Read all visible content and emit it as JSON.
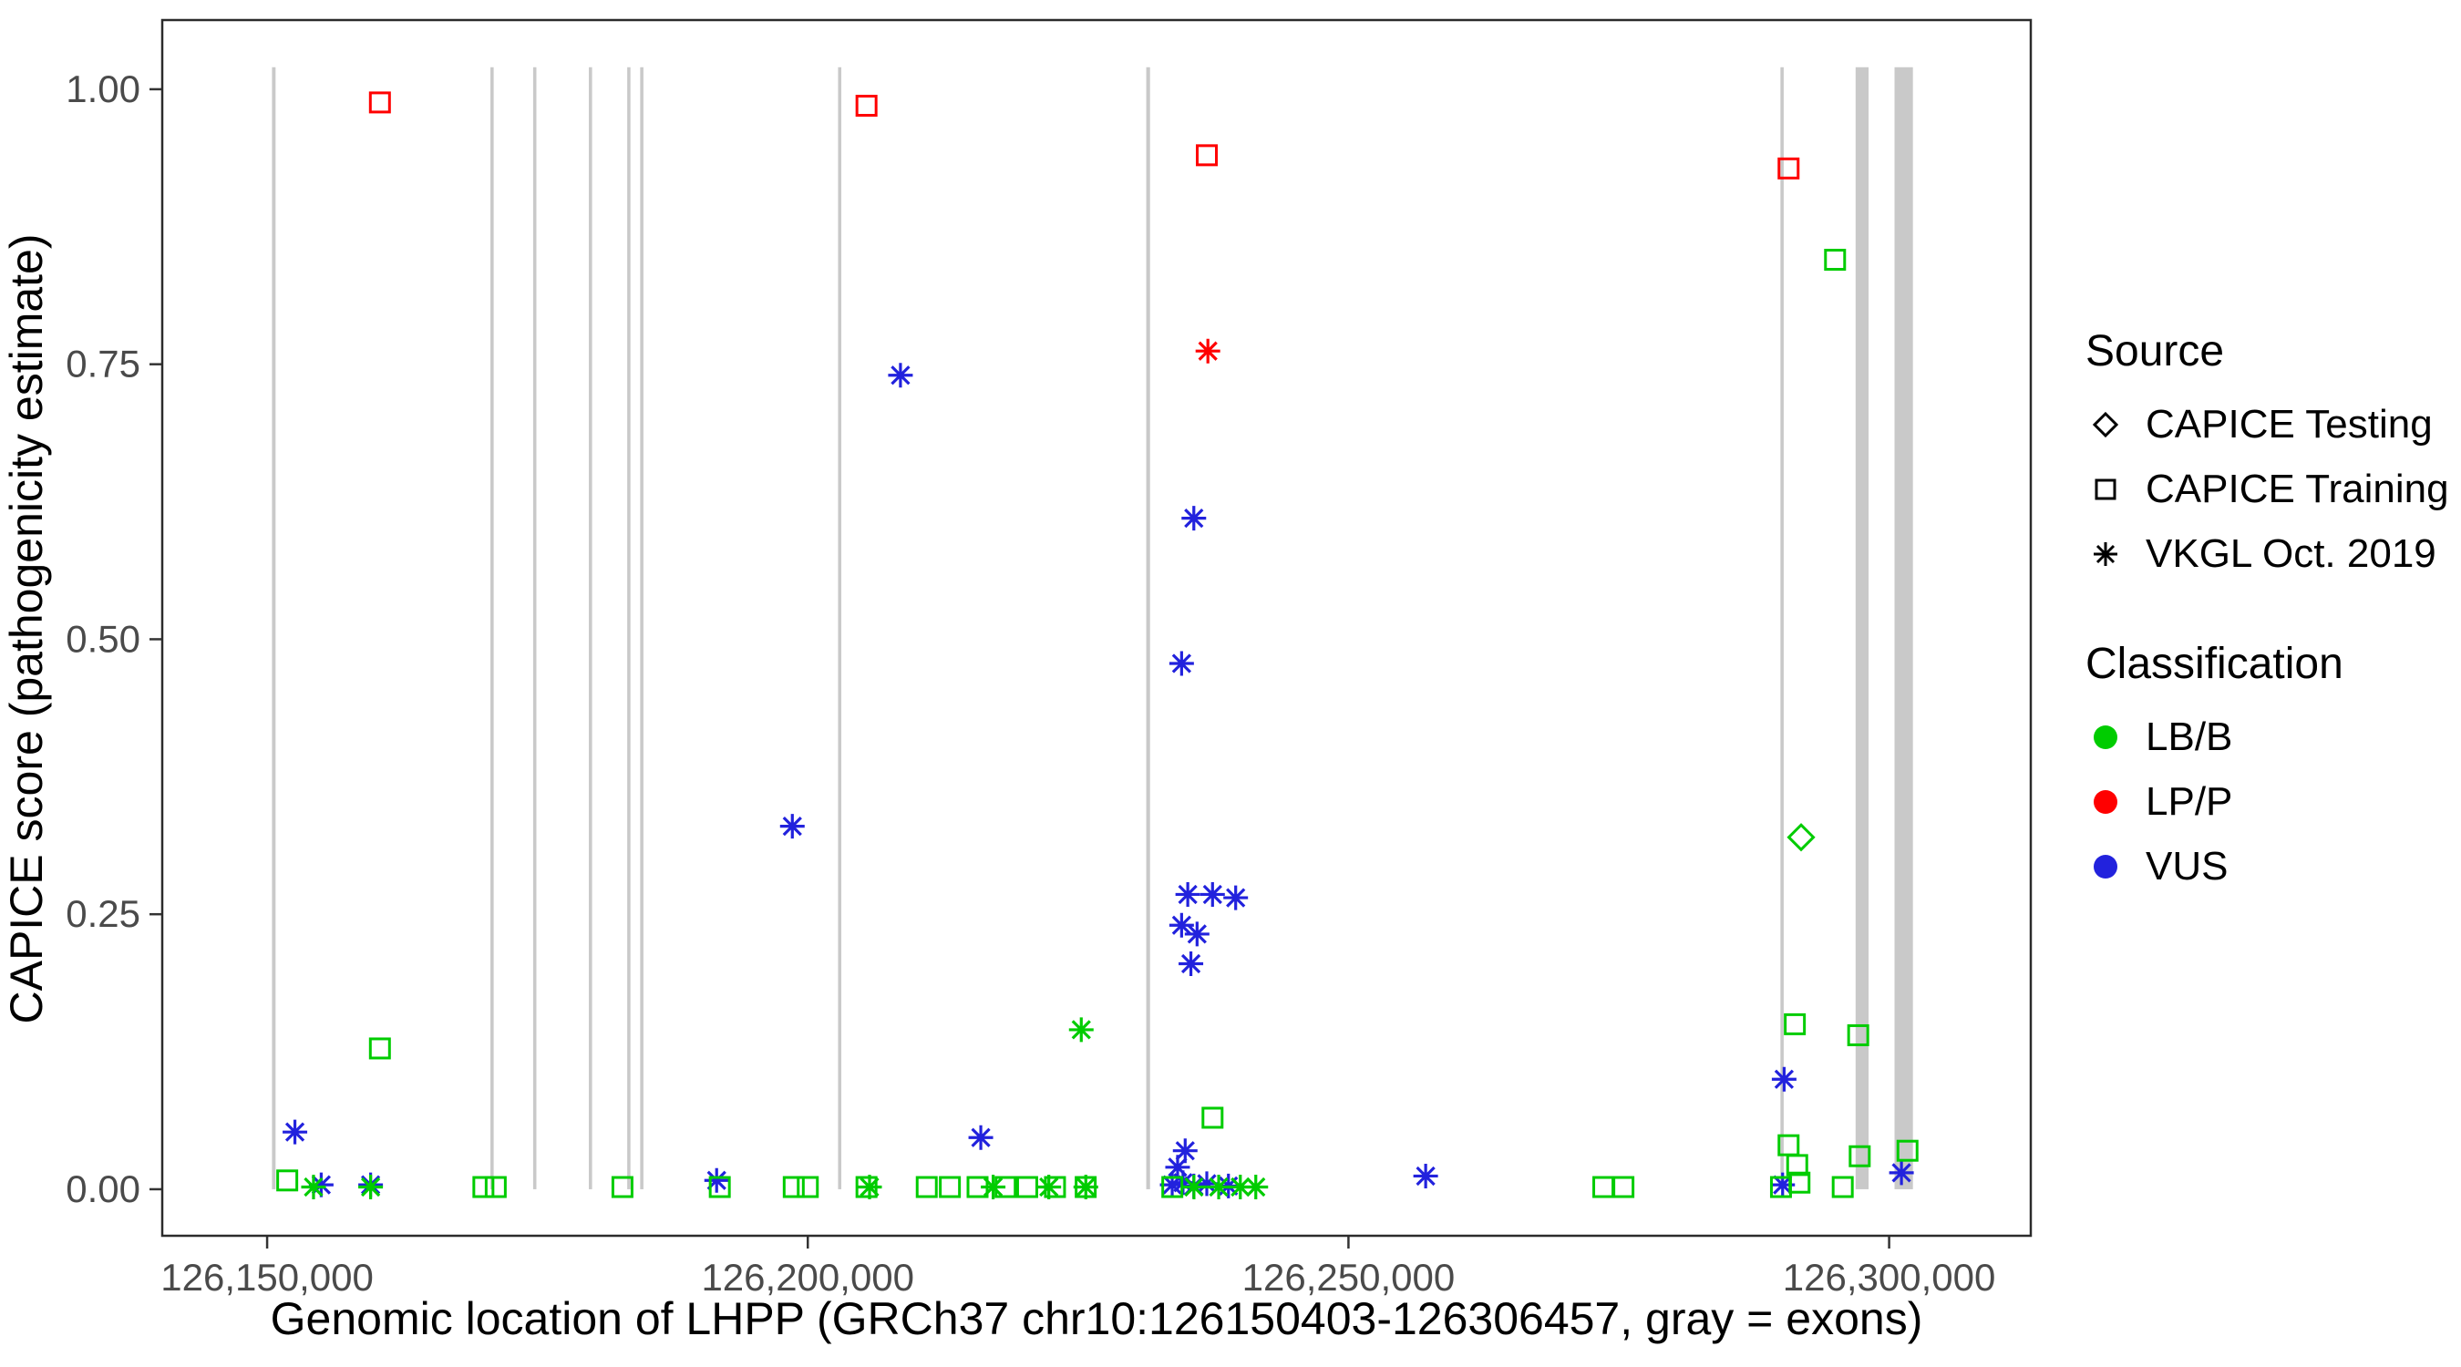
{
  "chart_data": {
    "type": "scatter",
    "title": "",
    "xlabel": "Genomic location of LHPP (GRCh37 chr10:126150403-126306457, gray = exons)",
    "ylabel": "CAPICE score (pathogenicity estimate)",
    "grid": "off",
    "legend_position": "right",
    "x_domain": [
      126140300,
      126313100
    ],
    "y_domain": [
      -0.0423,
      1.0629
    ],
    "exon_ymax": 1.02,
    "x_ticks": [
      {
        "value": 126150000,
        "label": "126,150,000"
      },
      {
        "value": 126200000,
        "label": "126,200,000"
      },
      {
        "value": 126250000,
        "label": "126,250,000"
      },
      {
        "value": 126300000,
        "label": "126,300,000"
      }
    ],
    "y_ticks": [
      {
        "value": 0.0,
        "label": "0.00"
      },
      {
        "value": 0.25,
        "label": "0.25"
      },
      {
        "value": 0.5,
        "label": "0.50"
      },
      {
        "value": 0.75,
        "label": "0.75"
      },
      {
        "value": 1.0,
        "label": "1.00"
      }
    ],
    "colors": {
      "exon": "#c9c9c9",
      "lbb": "#00cc00",
      "lpp": "#ff0000",
      "vus": "#2222dd",
      "panel_border": "#2b2b2b",
      "tick_text": "#4a4a4a"
    },
    "exons": [
      [
        126150450,
        126150780
      ],
      [
        126170650,
        126170950
      ],
      [
        126174600,
        126174900
      ],
      [
        126179750,
        126180050
      ],
      [
        126183300,
        126183600
      ],
      [
        126184500,
        126184800
      ],
      [
        126202800,
        126203100
      ],
      [
        126231300,
        126231650
      ],
      [
        126289950,
        126290250
      ],
      [
        126296900,
        126298100
      ],
      [
        126300500,
        126302200
      ]
    ],
    "series": [
      {
        "name": "LP/P - CAPICE Training",
        "source": "CAPICE Training",
        "classification": "LP/P",
        "shape": "square",
        "color": "#ff0000",
        "points": [
          [
            126160430,
            0.988
          ],
          [
            126205430,
            0.985
          ],
          [
            126236900,
            0.94
          ],
          [
            126290700,
            0.928
          ]
        ]
      },
      {
        "name": "LP/P - VKGL Oct. 2019",
        "source": "VKGL Oct. 2019",
        "classification": "LP/P",
        "shape": "asterisk",
        "color": "#ff0000",
        "points": [
          [
            126237000,
            0.762
          ]
        ]
      },
      {
        "name": "VUS - VKGL Oct. 2019",
        "source": "VKGL Oct. 2019",
        "classification": "VUS",
        "shape": "asterisk",
        "color": "#2222dd",
        "points": [
          [
            126208570,
            0.74
          ],
          [
            126235700,
            0.61
          ],
          [
            126234570,
            0.478
          ],
          [
            126198570,
            0.33
          ],
          [
            126235140,
            0.268
          ],
          [
            126237430,
            0.268
          ],
          [
            126239570,
            0.265
          ],
          [
            126234570,
            0.24
          ],
          [
            126236000,
            0.232
          ],
          [
            126235430,
            0.205
          ],
          [
            126290290,
            0.1
          ],
          [
            126152570,
            0.052
          ],
          [
            126216000,
            0.047
          ],
          [
            126234900,
            0.035
          ],
          [
            126234200,
            0.02
          ],
          [
            126155000,
            0.004
          ],
          [
            126159570,
            0.004
          ],
          [
            126191570,
            0.008
          ],
          [
            126233700,
            0.004
          ],
          [
            126234700,
            0.006
          ],
          [
            126235700,
            0.003
          ],
          [
            126236900,
            0.005
          ],
          [
            126238900,
            0.003
          ],
          [
            126257140,
            0.012
          ],
          [
            126290150,
            0.004
          ],
          [
            126301140,
            0.015
          ]
        ]
      },
      {
        "name": "LB/B - CAPICE Training",
        "source": "CAPICE Training",
        "classification": "LB/B",
        "shape": "square",
        "color": "#00cc00",
        "points": [
          [
            126160430,
            0.128
          ],
          [
            126295000,
            0.845
          ],
          [
            126291280,
            0.15
          ],
          [
            126297140,
            0.14
          ],
          [
            126237430,
            0.065
          ],
          [
            126290700,
            0.04
          ],
          [
            126291500,
            0.022
          ],
          [
            126297280,
            0.03
          ],
          [
            126301700,
            0.035
          ],
          [
            126151860,
            0.008
          ],
          [
            126170000,
            0.002
          ],
          [
            126171140,
            0.002
          ],
          [
            126182860,
            0.002
          ],
          [
            126191860,
            0.002
          ],
          [
            126198700,
            0.002
          ],
          [
            126200000,
            0.002
          ],
          [
            126205430,
            0.002
          ],
          [
            126211000,
            0.002
          ],
          [
            126213140,
            0.002
          ],
          [
            126215700,
            0.002
          ],
          [
            126218290,
            0.002
          ],
          [
            126220290,
            0.002
          ],
          [
            126222860,
            0.002
          ],
          [
            126225700,
            0.002
          ],
          [
            126233710,
            0.002
          ],
          [
            126273570,
            0.002
          ],
          [
            126275430,
            0.002
          ],
          [
            126290000,
            0.002
          ],
          [
            126291710,
            0.006
          ],
          [
            126295710,
            0.002
          ]
        ]
      },
      {
        "name": "LB/B - VKGL Oct. 2019",
        "source": "VKGL Oct. 2019",
        "classification": "LB/B",
        "shape": "asterisk",
        "color": "#00cc00",
        "points": [
          [
            126225290,
            0.145
          ],
          [
            126154290,
            0.002
          ],
          [
            126159570,
            0.002
          ],
          [
            126205710,
            0.002
          ],
          [
            126217140,
            0.002
          ],
          [
            126222290,
            0.002
          ],
          [
            126225710,
            0.002
          ],
          [
            126235710,
            0.002
          ],
          [
            126238000,
            0.002
          ],
          [
            126240000,
            0.002
          ],
          [
            126241430,
            0.002
          ]
        ]
      },
      {
        "name": "LB/B - CAPICE Testing",
        "source": "CAPICE Testing",
        "classification": "LB/B",
        "shape": "diamond",
        "color": "#00cc00",
        "points": [
          [
            126291860,
            0.32
          ]
        ]
      }
    ],
    "legend": {
      "source": {
        "title": "Source",
        "items": [
          {
            "label": "CAPICE Testing",
            "shape": "diamond"
          },
          {
            "label": "CAPICE Training",
            "shape": "square"
          },
          {
            "label": "VKGL Oct. 2019",
            "shape": "asterisk"
          }
        ]
      },
      "classification": {
        "title": "Classification",
        "items": [
          {
            "label": "LB/B",
            "color": "#00cc00"
          },
          {
            "label": "LP/P",
            "color": "#ff0000"
          },
          {
            "label": "VUS",
            "color": "#2222dd"
          }
        ]
      }
    }
  }
}
